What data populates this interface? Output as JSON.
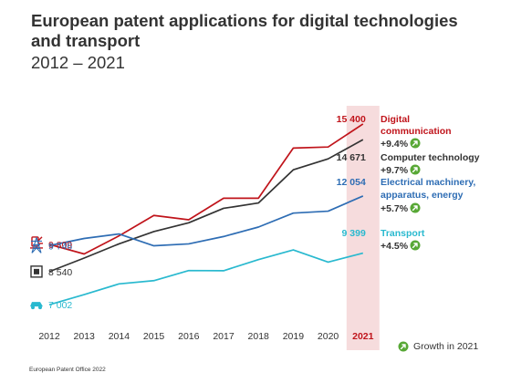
{
  "title": "European patent applications for digital technologies and transport",
  "subtitle": "2012 – 2021",
  "footer": "European Patent Office 2022",
  "growth_legend": "Growth in 2021",
  "icons": [
    "phone-tower-icon",
    "pylon-icon",
    "chip-icon",
    "car-icon",
    "up-arrow-icon"
  ],
  "colors": {
    "digital_communication": "#c0141b",
    "computer_technology": "#333333",
    "electrical_machinery": "#2e6db4",
    "transport": "#29b9cf",
    "growth_icon": "#58a836",
    "highlight": "#f6dcdd"
  },
  "chart_data": {
    "type": "line",
    "title": "European patent applications for digital technologies and transport",
    "subtitle": "2012 – 2021",
    "x": [
      "2012",
      "2013",
      "2014",
      "2015",
      "2016",
      "2017",
      "2018",
      "2019",
      "2020",
      "2021"
    ],
    "highlight_x": "2021",
    "series": [
      {
        "name": "Digital communication",
        "label_lines": [
          "Digital",
          "communication"
        ],
        "color": "#c0141b",
        "values": [
          9809,
          9360,
          10200,
          11150,
          10950,
          11950,
          11950,
          14280,
          14330,
          15400
        ],
        "start_label": "9 809",
        "end_label": "15 400",
        "growth": "+9.4%"
      },
      {
        "name": "Computer technology",
        "label_lines": [
          "Computer technology"
        ],
        "color": "#333333",
        "values": [
          8540,
          9170,
          9830,
          10400,
          10810,
          11480,
          11730,
          13270,
          13780,
          14671
        ],
        "start_label": "8 540",
        "end_label": "14 671",
        "growth": "+9.7%"
      },
      {
        "name": "Electrical machinery, apparatus, energy",
        "label_lines": [
          "Electrical machinery,",
          "apparatus, energy"
        ],
        "color": "#2e6db4",
        "values": [
          9746,
          10080,
          10290,
          9740,
          9830,
          10170,
          10610,
          11260,
          11350,
          12054
        ],
        "start_label": "9 746",
        "end_label": "12 054",
        "growth": "+5.7%"
      },
      {
        "name": "Transport",
        "label_lines": [
          "Transport"
        ],
        "color": "#29b9cf",
        "values": [
          7002,
          7470,
          7970,
          8120,
          8590,
          8580,
          9100,
          9550,
          8980,
          9399
        ],
        "start_label": "7 002",
        "end_label": "9 399",
        "growth": "+4.5%"
      }
    ],
    "ylim": [
      6500,
      16500
    ],
    "grid": false,
    "legend": "right"
  }
}
